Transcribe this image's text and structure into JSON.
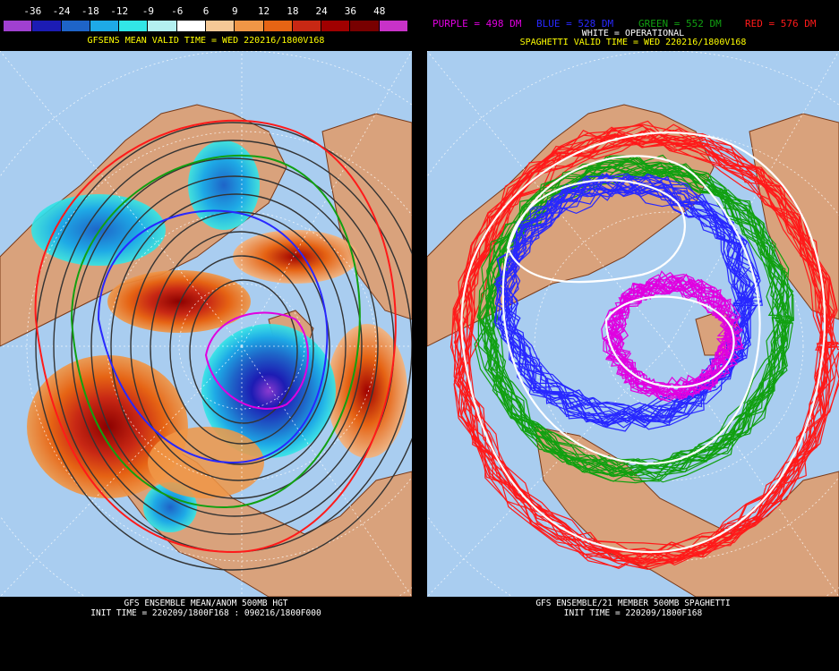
{
  "left": {
    "colorbar": {
      "labels": [
        "-36",
        "-24",
        "-18",
        "-12",
        "-9",
        "-6",
        "6",
        "9",
        "12",
        "18",
        "24",
        "36",
        "48"
      ],
      "colors": [
        "#a040d0",
        "#1c1cb4",
        "#1e64c8",
        "#1eaae6",
        "#32e6e6",
        "#b4f0f0",
        "#ffffff",
        "#f5c896",
        "#f09646",
        "#e66414",
        "#c82814",
        "#a00000",
        "#780000",
        "#c832c8"
      ]
    },
    "title": "GFSENS MEAN VALID TIME = WED 220216/1800V168",
    "footer_line1": "GFS ENSEMBLE MEAN/ANOM 500MB HGT",
    "footer_line2": "INIT TIME = 220209/1800F168 : 090216/1800F000"
  },
  "right": {
    "legend": {
      "purple": "PURPLE = 498 DM",
      "blue": "BLUE = 528 DM",
      "green": "GREEN = 552 DM",
      "red": "RED = 576 DM"
    },
    "legend_colors": {
      "purple": "#e000e0",
      "blue": "#2828ff",
      "green": "#11a011",
      "red": "#ff1a1a"
    },
    "operational": "WHITE = OPERATIONAL",
    "title": "SPAGHETTI VALID TIME = WED 220216/1800V168",
    "footer_line1": "GFS ENSEMBLE/21 MEMBER 500MB SPAGHETTI",
    "footer_line2": "INIT TIME = 220209/1800F168"
  },
  "colors": {
    "ocean": "#a9cdf0",
    "land": "#d9a27c",
    "title_yellow": "#ffff00"
  }
}
